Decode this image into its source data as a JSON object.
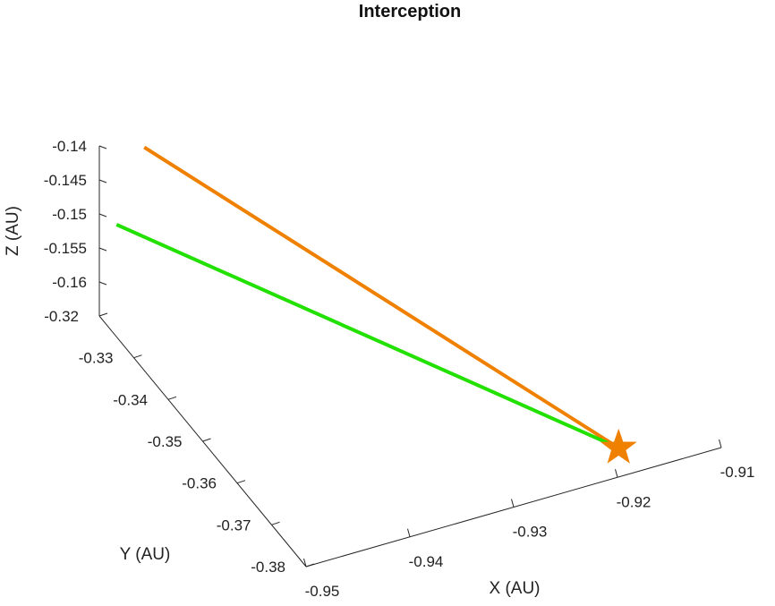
{
  "chart_data": {
    "type": "line3d",
    "title": "Interception",
    "xlabel": "X (AU)",
    "ylabel": "Y (AU)",
    "zlabel": "Z (AU)",
    "xlim": [
      -0.95,
      -0.91
    ],
    "ylim": [
      -0.38,
      -0.32
    ],
    "zlim": [
      -0.165,
      -0.14
    ],
    "xticks": [
      "-0.95",
      "-0.94",
      "-0.93",
      "-0.92",
      "-0.91"
    ],
    "yticks": [
      "-0.32",
      "-0.33",
      "-0.34",
      "-0.35",
      "-0.36",
      "-0.37",
      "-0.38"
    ],
    "zticks": [
      "-0.14",
      "-0.145",
      "-0.15",
      "-0.155",
      "-0.16"
    ],
    "grid": false,
    "series": [
      {
        "color": "#f08000",
        "points": [
          {
            "x": -0.9465,
            "y": -0.3225,
            "z": -0.1402
          },
          {
            "x": -0.9185,
            "y": -0.3758,
            "z": -0.1639
          }
        ]
      },
      {
        "color": "#22e000",
        "points": [
          {
            "x": -0.95,
            "y": -0.325,
            "z": -0.1485
          },
          {
            "x": -0.9185,
            "y": -0.3758,
            "z": -0.1639
          }
        ]
      }
    ],
    "markers": [
      {
        "shape": "star",
        "color": "#f08000",
        "x": -0.9185,
        "y": -0.3758,
        "z": -0.1639
      }
    ]
  }
}
